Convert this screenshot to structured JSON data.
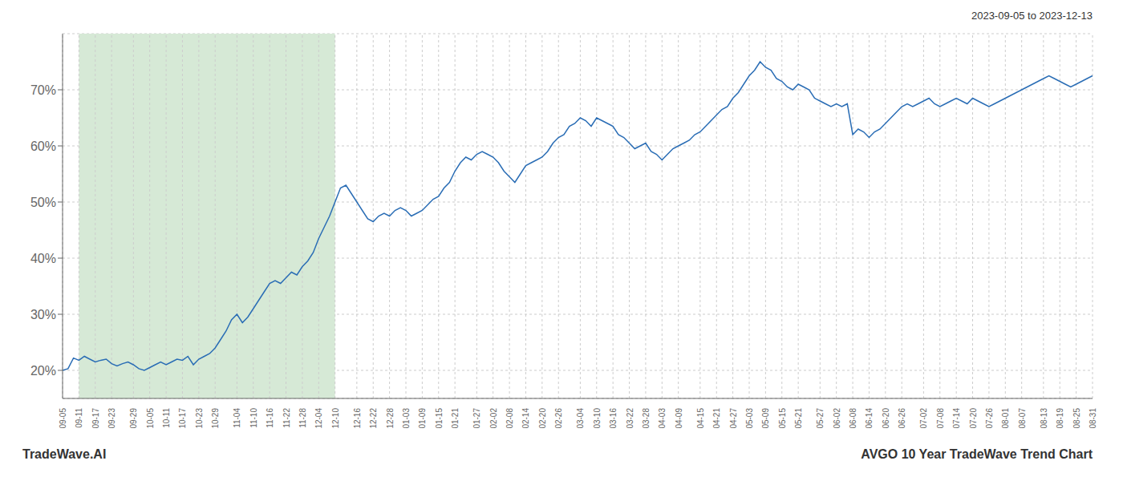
{
  "chart_data": {
    "type": "line",
    "title": "2023-09-05 to 2023-12-13",
    "annotations": [
      "TradeWave.AI",
      "AVGO 10 Year TradeWave Trend Chart"
    ],
    "color": "#2a6db5",
    "ylim": [
      15,
      80
    ],
    "yticks": [
      {
        "value": 20,
        "label": "20%"
      },
      {
        "value": 30,
        "label": "30%"
      },
      {
        "value": 40,
        "label": "40%"
      },
      {
        "value": 50,
        "label": "50%"
      },
      {
        "value": 60,
        "label": "60%"
      },
      {
        "value": 70,
        "label": "70%"
      }
    ],
    "grid": true,
    "shaded_range": {
      "start": "09-11",
      "end": "12-10",
      "color": "#d6e9d6"
    },
    "categories": [
      "09-05",
      null,
      null,
      "09-11",
      null,
      null,
      "09-17",
      null,
      null,
      "09-23",
      null,
      null,
      null,
      "09-29",
      null,
      null,
      "10-05",
      null,
      null,
      "10-11",
      null,
      null,
      "10-17",
      null,
      null,
      "10-23",
      null,
      null,
      "10-29",
      null,
      null,
      null,
      "11-04",
      null,
      null,
      "11-10",
      null,
      null,
      "11-16",
      null,
      null,
      "11-22",
      null,
      null,
      "11-28",
      null,
      null,
      "12-04",
      null,
      null,
      "12-10",
      null,
      null,
      null,
      "12-16",
      null,
      null,
      "12-22",
      null,
      null,
      "12-28",
      null,
      null,
      "01-03",
      null,
      null,
      "01-09",
      null,
      null,
      "01-15",
      null,
      null,
      "01-21",
      null,
      null,
      null,
      "01-27",
      null,
      null,
      "02-02",
      null,
      null,
      "02-08",
      null,
      null,
      "02-14",
      null,
      null,
      "02-20",
      null,
      null,
      "02-26",
      null,
      null,
      null,
      "03-04",
      null,
      null,
      "03-10",
      null,
      null,
      "03-16",
      null,
      null,
      "03-22",
      null,
      null,
      "03-28",
      null,
      null,
      "04-03",
      null,
      null,
      "04-09",
      null,
      null,
      null,
      "04-15",
      null,
      null,
      "04-21",
      null,
      null,
      "04-27",
      null,
      null,
      "05-03",
      null,
      null,
      "05-09",
      null,
      null,
      "05-15",
      null,
      null,
      "05-21",
      null,
      null,
      null,
      "05-27",
      null,
      null,
      "06-02",
      null,
      null,
      "06-08",
      null,
      null,
      "06-14",
      null,
      null,
      "06-20",
      null,
      null,
      "06-26",
      null,
      null,
      null,
      "07-02",
      null,
      null,
      "07-08",
      null,
      null,
      "07-14",
      null,
      null,
      "07-20",
      null,
      null,
      "07-26",
      null,
      null,
      "08-01",
      null,
      null,
      "08-07",
      null,
      null,
      null,
      "08-13",
      null,
      null,
      "08-19",
      null,
      null,
      "08-25",
      null,
      null,
      "08-31"
    ],
    "values": [
      20.0,
      20.3,
      22.2,
      21.8,
      22.5,
      22.0,
      21.5,
      21.8,
      22.0,
      21.2,
      20.8,
      21.2,
      21.5,
      21.0,
      20.3,
      20.0,
      20.5,
      21.0,
      21.5,
      21.0,
      21.5,
      22.0,
      21.8,
      22.5,
      21.0,
      22.0,
      22.5,
      23.0,
      24.0,
      25.5,
      27.0,
      29.0,
      30.0,
      28.5,
      29.5,
      31.0,
      32.5,
      34.0,
      35.5,
      36.0,
      35.5,
      36.5,
      37.5,
      37.0,
      38.5,
      39.5,
      41.0,
      43.5,
      45.5,
      47.5,
      50.0,
      52.5,
      53.0,
      51.5,
      50.0,
      48.5,
      47.0,
      46.5,
      47.5,
      48.0,
      47.5,
      48.5,
      49.0,
      48.5,
      47.5,
      48.0,
      48.5,
      49.5,
      50.5,
      51.0,
      52.5,
      53.5,
      55.5,
      57.0,
      58.0,
      57.5,
      58.5,
      59.0,
      58.5,
      58.0,
      57.0,
      55.5,
      54.5,
      53.5,
      55.0,
      56.5,
      57.0,
      57.5,
      58.0,
      59.0,
      60.5,
      61.5,
      62.0,
      63.5,
      64.0,
      65.0,
      64.5,
      63.5,
      65.0,
      64.5,
      64.0,
      63.5,
      62.0,
      61.5,
      60.5,
      59.5,
      60.0,
      60.5,
      59.0,
      58.5,
      57.5,
      58.5,
      59.5,
      60.0,
      60.5,
      61.0,
      62.0,
      62.5,
      63.5,
      64.5,
      65.5,
      66.5,
      67.0,
      68.5,
      69.5,
      71.0,
      72.5,
      73.5,
      75.0,
      74.0,
      73.5,
      72.0,
      71.5,
      70.5,
      70.0,
      71.0,
      70.5,
      70.0,
      68.5,
      68.0,
      67.5,
      67.0,
      67.5,
      67.0,
      67.5,
      62.0,
      63.0,
      62.5,
      61.5,
      62.5,
      63.0,
      64.0,
      65.0,
      66.0,
      67.0,
      67.5,
      67.0,
      67.5,
      68.0,
      68.5,
      67.5,
      67.0,
      67.5,
      68.0,
      68.5,
      68.0,
      67.5,
      68.5,
      68.0,
      67.5,
      67.0,
      67.5,
      68.0,
      68.5,
      69.0,
      69.5,
      70.0,
      70.5,
      71.0,
      71.5,
      72.0,
      72.5,
      72.0,
      71.5,
      71.0,
      70.5,
      71.0,
      71.5,
      72.0,
      72.5
    ]
  }
}
